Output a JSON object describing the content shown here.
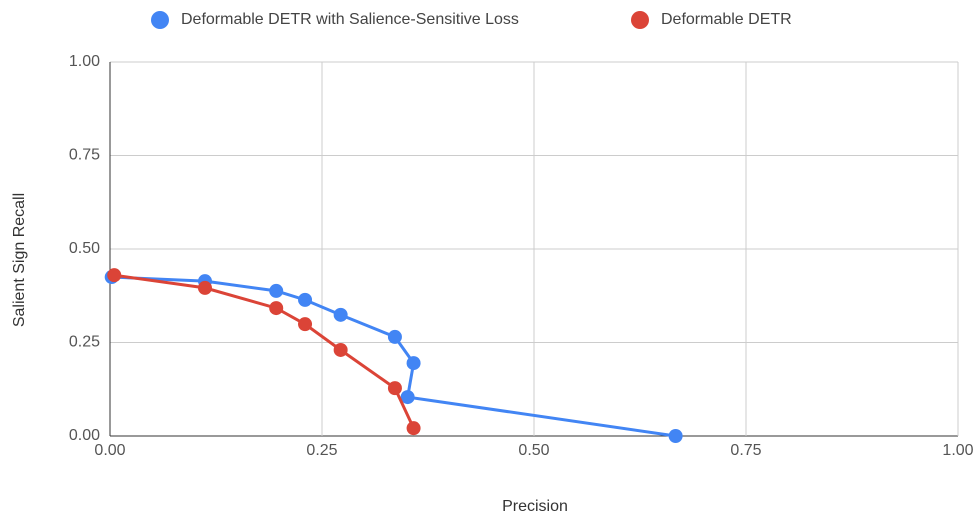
{
  "chart_data": {
    "type": "line",
    "x_label": "Precision",
    "y_label": "Salient Sign Recall",
    "series": [
      {
        "name": "Deformable DETR with Salience-Sensitive Loss",
        "color": "#4285f4",
        "x": [
          0.002,
          0.112,
          0.196,
          0.23,
          0.272,
          0.336,
          0.358,
          0.351,
          0.667
        ],
        "values": [
          0.425,
          0.414,
          0.388,
          0.364,
          0.324,
          0.265,
          0.195,
          0.104,
          0.0
        ]
      },
      {
        "name": "Deformable DETR",
        "color": "#db4437",
        "x": [
          0.005,
          0.112,
          0.196,
          0.23,
          0.272,
          0.336,
          0.358
        ],
        "values": [
          0.43,
          0.396,
          0.342,
          0.299,
          0.23,
          0.128,
          0.021
        ]
      }
    ],
    "xlim": [
      0,
      1
    ],
    "ylim": [
      0,
      1
    ],
    "xticks": [
      {
        "value": 0,
        "label": "0.00"
      },
      {
        "value": 0.25,
        "label": "0.25"
      },
      {
        "value": 0.5,
        "label": "0.50"
      },
      {
        "value": 0.75,
        "label": "0.75"
      },
      {
        "value": 1,
        "label": "1.00"
      }
    ],
    "yticks": [
      {
        "value": 0,
        "label": "0.00"
      },
      {
        "value": 0.25,
        "label": "0.25"
      },
      {
        "value": 0.5,
        "label": "0.50"
      },
      {
        "value": 0.75,
        "label": "0.75"
      },
      {
        "value": 1,
        "label": "1.00"
      }
    ],
    "grid": true,
    "legend": "top"
  }
}
